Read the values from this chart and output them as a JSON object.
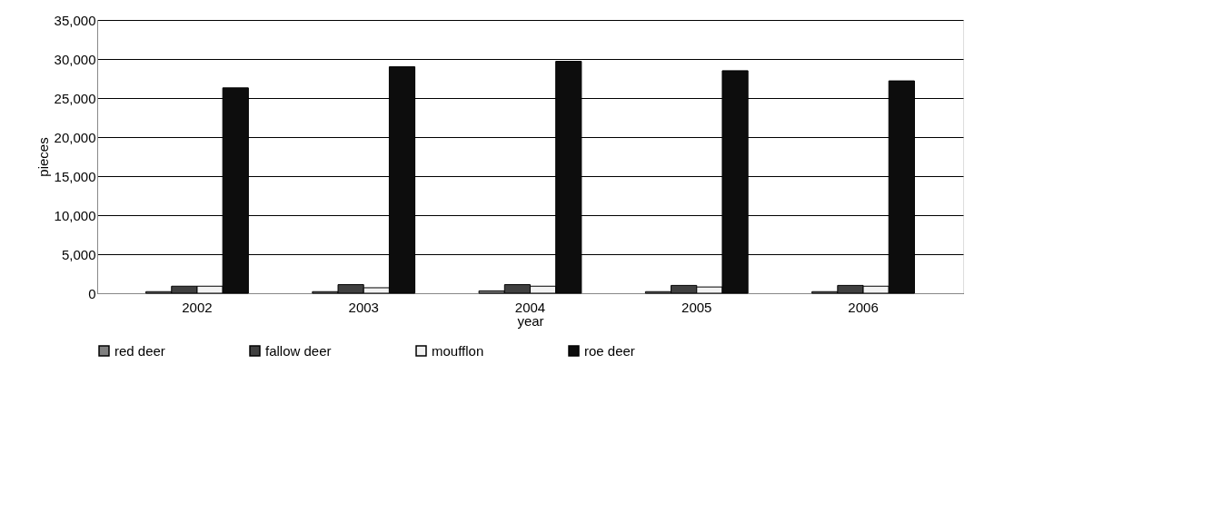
{
  "chart_data": {
    "type": "bar",
    "xlabel": "year",
    "ylabel": "pieces",
    "categories": [
      "2002",
      "2003",
      "2004",
      "2005",
      "2006"
    ],
    "series": [
      {
        "name": "red deer",
        "color": "#808080",
        "values": [
          200,
          200,
          300,
          200,
          200
        ]
      },
      {
        "name": "fallow deer",
        "color": "#404040",
        "values": [
          900,
          1100,
          1100,
          1000,
          1000
        ]
      },
      {
        "name": "moufflon",
        "color": "#f2f2f2",
        "values": [
          900,
          700,
          900,
          800,
          900
        ]
      },
      {
        "name": "roe deer",
        "color": "#0d0d0d",
        "values": [
          26300,
          29000,
          29700,
          28500,
          27200
        ]
      }
    ],
    "ylim": [
      0,
      35000
    ],
    "yticks": [
      0,
      {
        "value": 5000,
        "label": "5,000"
      },
      {
        "value": 10000,
        "label": "10,000"
      },
      {
        "value": 15000,
        "label": "15,000"
      },
      {
        "value": 20000,
        "label": "20,000"
      },
      {
        "value": 25000,
        "label": "25,000"
      },
      {
        "value": 30000,
        "label": "30,000"
      },
      {
        "value": 35000,
        "label": "35,000"
      }
    ],
    "grid": "y",
    "legend": "bottom"
  }
}
